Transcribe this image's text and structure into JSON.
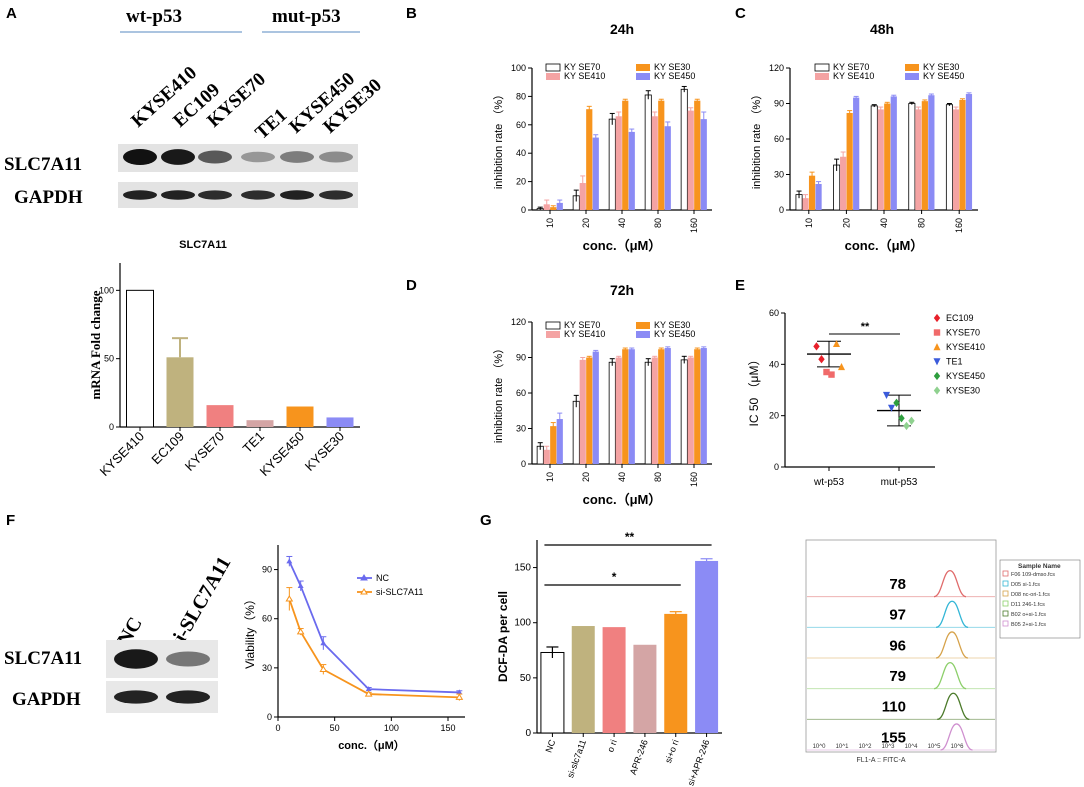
{
  "panel_labels": {
    "A": "A",
    "B": "B",
    "C": "C",
    "D": "D",
    "E": "E",
    "F": "F",
    "G": "G"
  },
  "colors": {
    "KYSE70": "#ffffff",
    "KYSE410": "#f4a3a3",
    "KYSE30": "#f7941d",
    "KYSE450": "#8b8bf5",
    "olive": "#bfb27e",
    "salmon": "#f08080",
    "rosy": "#d4a5a5",
    "blue_line": "#6a6aee",
    "orange_line": "#f7941d"
  },
  "panel_A": {
    "wt_label": "wt-p53",
    "mut_label": "mut-p53",
    "lanes": [
      "KYSE410",
      "EC109",
      "KYSE70",
      "TE1",
      "KYSE450",
      "KYSE30"
    ],
    "row_labels": [
      "SLC7A11",
      "GAPDH"
    ],
    "slc_intensity": [
      1.0,
      0.95,
      0.6,
      0.25,
      0.4,
      0.3
    ],
    "gapdh_intensity": [
      0.9,
      0.9,
      0.85,
      0.85,
      0.9,
      0.85
    ]
  },
  "chart_data": [
    {
      "id": "A_mrna",
      "type": "bar",
      "title": "SLC7A11",
      "ylabel": "mRNA Fold change",
      "xlabel": "",
      "categories": [
        "KYSE410",
        "EC109",
        "KYSE70",
        "TE1",
        "KYSE450",
        "KYSE30"
      ],
      "values": [
        100,
        51,
        16,
        5,
        15,
        7
      ],
      "errors": [
        0,
        14,
        0,
        0,
        0,
        0
      ],
      "colors": [
        "#ffffff",
        "#bfb27e",
        "#f08080",
        "#d4a5a5",
        "#f7941d",
        "#8b8bf5"
      ],
      "yticks": [
        "0",
        "50",
        "100"
      ],
      "ylim": [
        0,
        120
      ]
    },
    {
      "id": "B",
      "type": "bar",
      "title": "24h",
      "xlabel": "conc.（μM）",
      "ylabel": "inhibition rate （%）",
      "categories": [
        "10",
        "20",
        "40",
        "80",
        "160"
      ],
      "yticks": [
        "0",
        "20",
        "40",
        "60",
        "80",
        "100"
      ],
      "ylim": [
        0,
        100
      ],
      "legend": [
        "KY SE70",
        "KY SE410",
        "KY SE30",
        "KY SE450"
      ],
      "series": [
        {
          "name": "KYSE70",
          "values": [
            1,
            10,
            64,
            81,
            85
          ],
          "errors": [
            1,
            4,
            4,
            3,
            2
          ]
        },
        {
          "name": "KYSE410",
          "values": [
            4,
            19,
            66,
            66,
            70
          ],
          "errors": [
            3,
            5,
            3,
            3,
            2
          ]
        },
        {
          "name": "KYSE30",
          "values": [
            2,
            71,
            77,
            77,
            77
          ],
          "errors": [
            1,
            2,
            1,
            1,
            1
          ]
        },
        {
          "name": "KYSE450",
          "values": [
            5,
            51,
            55,
            59,
            64
          ],
          "errors": [
            2,
            2,
            2,
            3,
            5
          ]
        }
      ]
    },
    {
      "id": "C",
      "type": "bar",
      "title": "48h",
      "xlabel": "conc.（μM）",
      "ylabel": "inhibition rate （%）",
      "categories": [
        "10",
        "20",
        "40",
        "80",
        "160"
      ],
      "yticks": [
        "0",
        "30",
        "60",
        "90",
        "120"
      ],
      "ylim": [
        0,
        120
      ],
      "legend": [
        "KY SE70",
        "KY SE410",
        "KY SE30",
        "KY SE450"
      ],
      "series": [
        {
          "name": "KYSE70",
          "values": [
            13,
            38,
            88,
            90,
            89
          ],
          "errors": [
            3,
            5,
            1,
            1,
            1
          ]
        },
        {
          "name": "KYSE410",
          "values": [
            10,
            45,
            85,
            85,
            85
          ],
          "errors": [
            3,
            4,
            2,
            2,
            2
          ]
        },
        {
          "name": "KYSE30",
          "values": [
            29,
            82,
            90,
            92,
            93
          ],
          "errors": [
            3,
            2,
            1,
            1,
            1
          ]
        },
        {
          "name": "KYSE450",
          "values": [
            22,
            95,
            96,
            97,
            98
          ],
          "errors": [
            2,
            1,
            1,
            1,
            1
          ]
        }
      ]
    },
    {
      "id": "D",
      "type": "bar",
      "title": "72h",
      "xlabel": "conc.（μM）",
      "ylabel": "inhibition rate （%）",
      "categories": [
        "10",
        "20",
        "40",
        "80",
        "160"
      ],
      "yticks": [
        "0",
        "30",
        "60",
        "90",
        "120"
      ],
      "ylim": [
        0,
        120
      ],
      "legend": [
        "KY SE70",
        "KY SE410",
        "KY SE30",
        "KY SE450"
      ],
      "series": [
        {
          "name": "KYSE70",
          "values": [
            15,
            53,
            86,
            86,
            88
          ],
          "errors": [
            3,
            5,
            3,
            3,
            3
          ]
        },
        {
          "name": "KYSE410",
          "values": [
            12,
            88,
            90,
            90,
            90
          ],
          "errors": [
            3,
            2,
            1,
            1,
            1
          ]
        },
        {
          "name": "KYSE30",
          "values": [
            32,
            90,
            97,
            97,
            97
          ],
          "errors": [
            3,
            1,
            1,
            1,
            1
          ]
        },
        {
          "name": "KYSE450",
          "values": [
            38,
            95,
            97,
            98,
            98
          ],
          "errors": [
            5,
            1,
            1,
            1,
            1
          ]
        }
      ]
    },
    {
      "id": "E",
      "type": "scatter",
      "ylabel": "IC 50 （μM）",
      "categories": [
        "wt-p53",
        "mut-p53"
      ],
      "yticks": [
        "0",
        "20",
        "40",
        "60"
      ],
      "ylim": [
        0,
        60
      ],
      "significance": "**",
      "groups": [
        {
          "name": "wt-p53",
          "mean": 44,
          "sd": 5,
          "points": [
            {
              "label": "EC109",
              "value": 47,
              "color": "#e8202a",
              "marker": "diamond"
            },
            {
              "label": "EC109",
              "value": 42,
              "color": "#e8202a",
              "marker": "diamond"
            },
            {
              "label": "KYSE70",
              "value": 37,
              "color": "#f06a6a",
              "marker": "square"
            },
            {
              "label": "KYSE70",
              "value": 36,
              "color": "#f06a6a",
              "marker": "square"
            },
            {
              "label": "KYSE410",
              "value": 48,
              "color": "#f7941d",
              "marker": "triangle"
            },
            {
              "label": "KYSE410",
              "value": 39,
              "color": "#f7941d",
              "marker": "triangle"
            }
          ]
        },
        {
          "name": "mut-p53",
          "mean": 22,
          "sd": 6,
          "points": [
            {
              "label": "TE1",
              "value": 28,
              "color": "#3b5bdb",
              "marker": "tri-down"
            },
            {
              "label": "TE1",
              "value": 23,
              "color": "#3b5bdb",
              "marker": "tri-down"
            },
            {
              "label": "KYSE450",
              "value": 25,
              "color": "#2e9e3e",
              "marker": "diamond"
            },
            {
              "label": "KYSE450",
              "value": 19,
              "color": "#2e9e3e",
              "marker": "diamond"
            },
            {
              "label": "KYSE30",
              "value": 16,
              "color": "#8fd18f",
              "marker": "diamond"
            },
            {
              "label": "KYSE30",
              "value": 18,
              "color": "#8fd18f",
              "marker": "diamond"
            }
          ]
        }
      ],
      "legend": [
        {
          "label": "EC109",
          "color": "#e8202a",
          "marker": "diamond"
        },
        {
          "label": "KYSE70",
          "color": "#f06a6a",
          "marker": "square"
        },
        {
          "label": "KYSE410",
          "color": "#f7941d",
          "marker": "triangle"
        },
        {
          "label": "TE1",
          "color": "#3b5bdb",
          "marker": "tri-down"
        },
        {
          "label": "KYSE450",
          "color": "#2e9e3e",
          "marker": "diamond"
        },
        {
          "label": "KYSE30",
          "color": "#8fd18f",
          "marker": "diamond"
        }
      ]
    },
    {
      "id": "F_line",
      "type": "line",
      "xlabel": "conc.（μM）",
      "ylabel": "Viability（%）",
      "xticks": [
        "0",
        "50",
        "100",
        "150"
      ],
      "yticks": [
        "0",
        "30",
        "60",
        "90"
      ],
      "xlim": [
        0,
        165
      ],
      "ylim": [
        0,
        105
      ],
      "series": [
        {
          "name": "NC",
          "color": "#6a6aee",
          "x": [
            10,
            20,
            40,
            80,
            160
          ],
          "y": [
            95,
            80,
            45,
            17,
            15
          ],
          "errors": [
            3,
            3,
            4,
            1,
            1
          ]
        },
        {
          "name": "si-SLC7A11",
          "color": "#f7941d",
          "x": [
            10,
            20,
            40,
            80,
            160
          ],
          "y": [
            72,
            52,
            29,
            14,
            12
          ],
          "errors": [
            7,
            2,
            3,
            1,
            2
          ]
        }
      ]
    },
    {
      "id": "G_bar",
      "type": "bar",
      "ylabel": "DCF-DA per cell",
      "categories": [
        "NC",
        "si-slc7a11",
        "o ri",
        "APR-246",
        "si+o ri",
        "si+APR-246"
      ],
      "values": [
        73,
        97,
        96,
        80,
        108,
        156
      ],
      "errors": [
        5,
        0,
        0,
        0,
        2,
        2
      ],
      "colors": [
        "#ffffff",
        "#bfb27e",
        "#f08080",
        "#d4a5a5",
        "#f7941d",
        "#8b8bf5"
      ],
      "yticks": [
        "0",
        "50",
        "100",
        "150"
      ],
      "ylim": [
        0,
        175
      ],
      "significance": [
        {
          "from": 0,
          "to": 4,
          "label": "*"
        },
        {
          "from": 0,
          "to": 5,
          "label": "**"
        }
      ]
    },
    {
      "id": "G_flow",
      "type": "histogram-overlay",
      "xlabel": "FL1-A :: FITC-A",
      "xticks": [
        "10^0",
        "10^1",
        "10^2",
        "10^3",
        "10^4",
        "10^5",
        "10^6"
      ],
      "values": [
        "78",
        "97",
        "96",
        "79",
        "110",
        "155"
      ],
      "legend_title": "Sample Name",
      "legend": [
        {
          "label": "F06 109-dmso.fcs",
          "color": "#e06b6b"
        },
        {
          "label": "D05 si-1.fcs",
          "color": "#33b6d6"
        },
        {
          "label": "D08 nc-ori-1.fcs",
          "color": "#d6a24a"
        },
        {
          "label": "D11 246-1.fcs",
          "color": "#8ccf6a"
        },
        {
          "label": "B02 o+si-1.fcs",
          "color": "#4b7a2a"
        },
        {
          "label": "B05 2+si-1.fcs",
          "color": "#cf8fcf"
        }
      ]
    }
  ],
  "panel_F": {
    "lanes": [
      "NC",
      "si-SLC7A11"
    ],
    "row_labels": [
      "SLC7A11",
      "GAPDH"
    ],
    "slc_intensity": [
      0.95,
      0.45
    ],
    "gapdh_intensity": [
      0.9,
      0.9
    ]
  }
}
